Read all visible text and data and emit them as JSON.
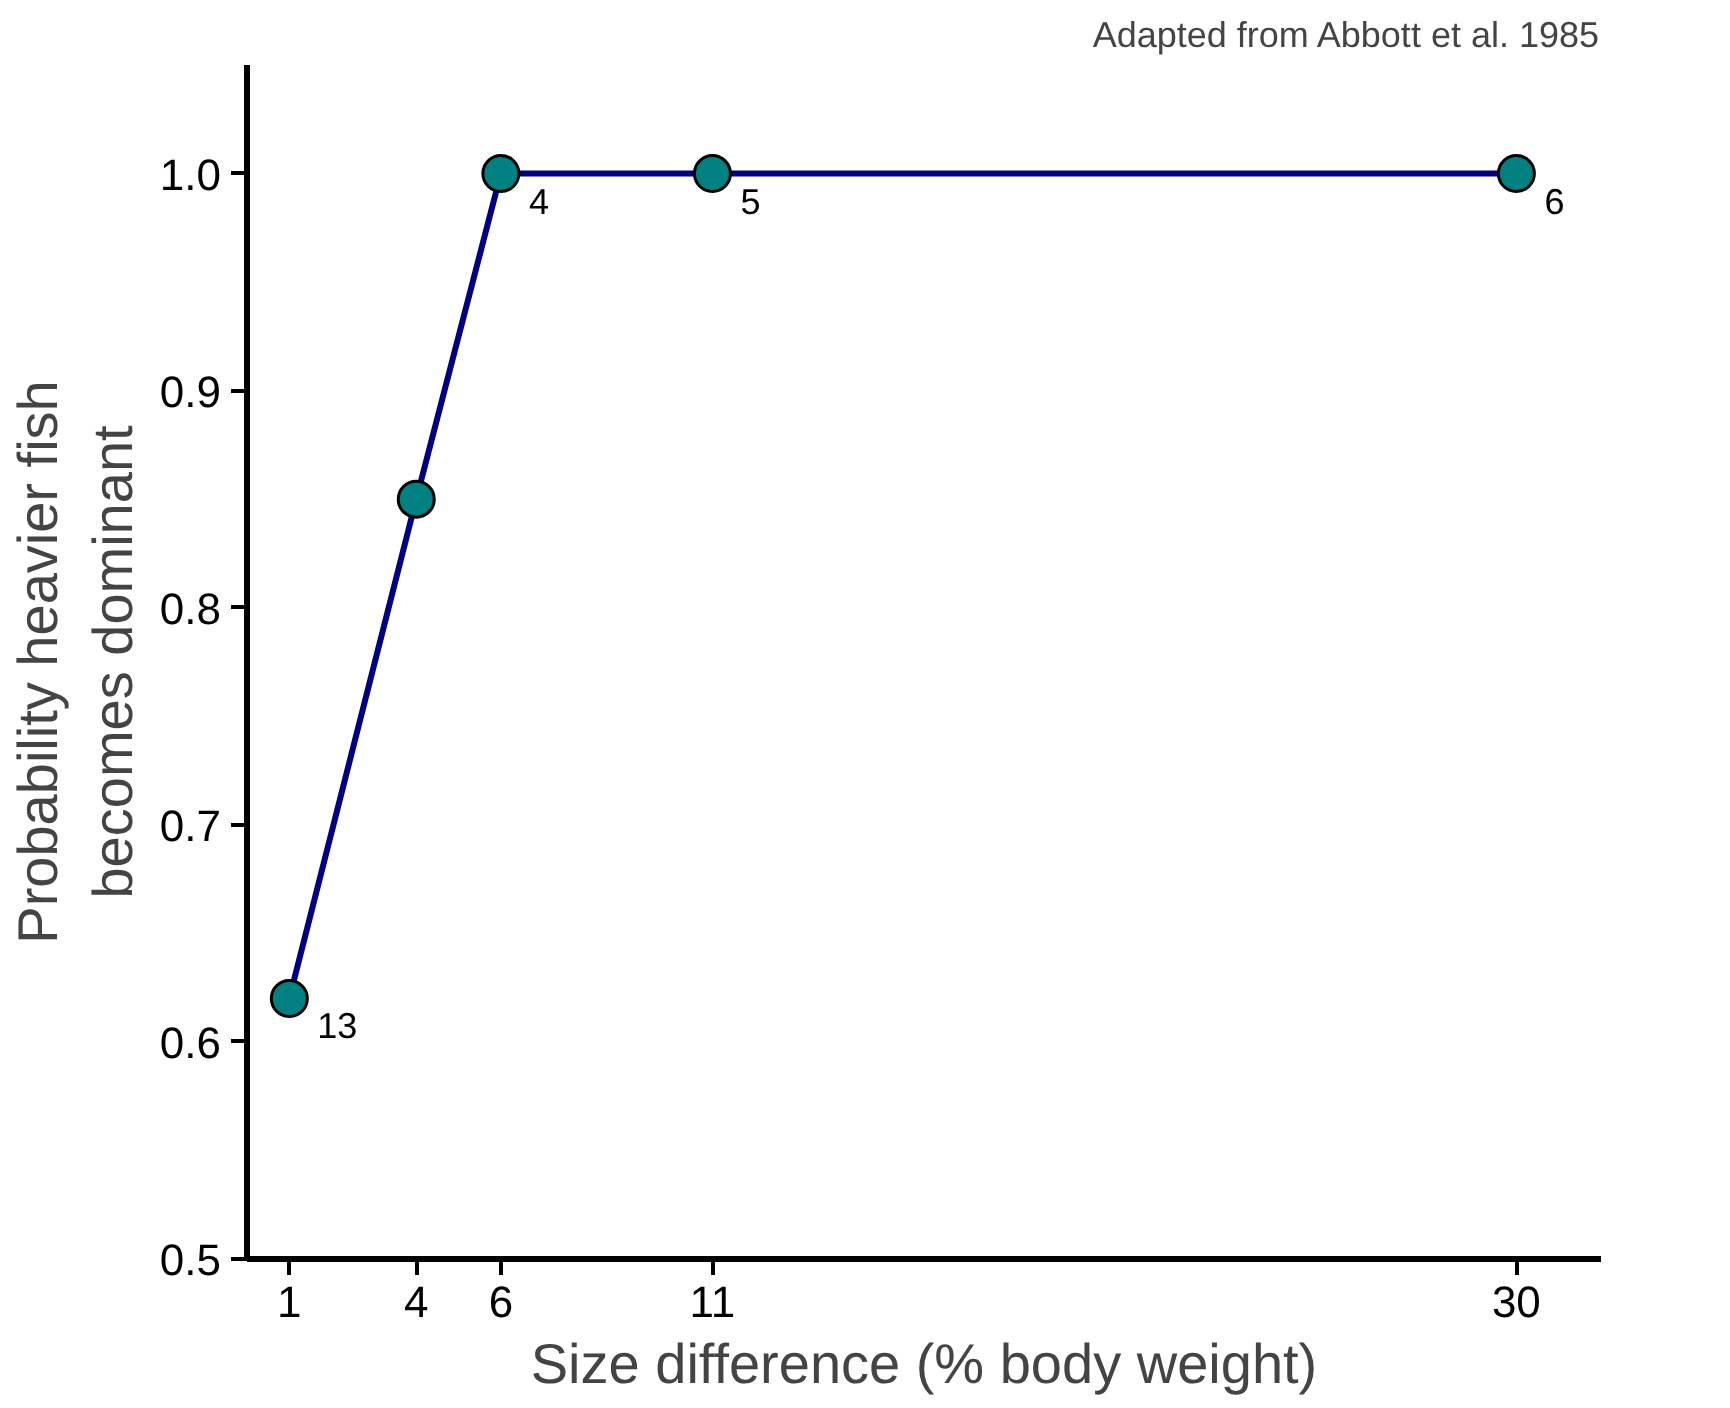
{
  "chart_data": {
    "type": "line",
    "xlabel": "Size difference (% body weight)",
    "ylabel": "Probability heavier fish\nbecomes dominant",
    "x": [
      1,
      4,
      6,
      11,
      30
    ],
    "series": [
      {
        "color": "#000080",
        "values": [
          0.62,
          0.85,
          1.0,
          1.0,
          1.0
        ]
      }
    ],
    "marker": "circle",
    "line_style": "solid",
    "grid": false,
    "xlim": [
      0,
      32
    ],
    "xticks": [
      1,
      4,
      6,
      11,
      30
    ],
    "ylim": [
      0.5,
      1.05
    ],
    "yticks": [
      0.5,
      0.6,
      0.7,
      0.8,
      0.9,
      {
        "value": 1.0,
        "label": "1.0"
      }
    ],
    "annotations": [
      "Adapted from Abbott et al. 1985",
      {
        "text": "13",
        "x": 1,
        "y": 0.62
      },
      {
        "text": "4",
        "x": 6,
        "y": 1.0
      },
      {
        "text": "5",
        "x": 11,
        "y": 1.0
      },
      {
        "text": "6",
        "x": 30,
        "y": 1.0
      }
    ]
  }
}
